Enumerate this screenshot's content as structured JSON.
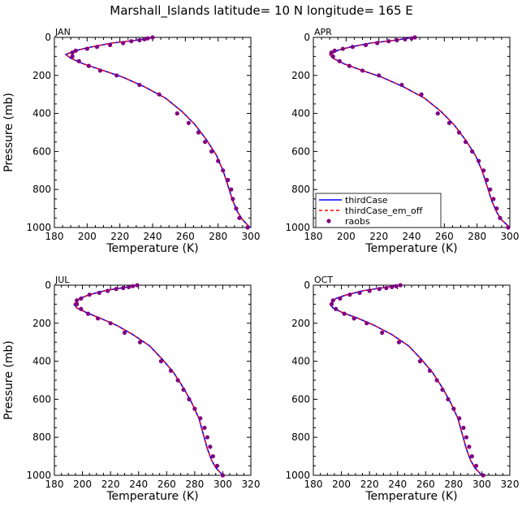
{
  "figure": {
    "title": "Marshall_Islands   latitude= 10 N longitude= 165 E"
  },
  "legend": {
    "entries": [
      {
        "label": "thirdCase",
        "style": "solid-line",
        "color": "#0000ff"
      },
      {
        "label": "thirdCase_em_off",
        "style": "dashed-line",
        "color": "#ff0000"
      },
      {
        "label": "raobs",
        "style": "dot",
        "color": "#800080"
      }
    ]
  },
  "colors": {
    "thirdCase": "#0000ff",
    "thirdCase_em_off": "#ff0000",
    "raobs": "#800080"
  },
  "chart_data": [
    {
      "type": "line",
      "panel": "JAN",
      "xlabel": "Temperature (K)",
      "ylabel": "Pressure (mb)",
      "xlim": [
        180,
        300
      ],
      "ylim": [
        1000,
        0
      ],
      "xticks": [
        180,
        200,
        220,
        240,
        260,
        280,
        300
      ],
      "yticks": [
        0,
        200,
        400,
        600,
        800,
        1000
      ],
      "series": [
        {
          "name": "thirdCase",
          "x": [
            241,
            230,
            215,
            200,
            192,
            187,
            190,
            198,
            210,
            222,
            235,
            248,
            258,
            266,
            273,
            279,
            283,
            286,
            289,
            292,
            295,
            299.5
          ],
          "y": [
            0,
            15,
            30,
            55,
            72,
            90,
            110,
            140,
            175,
            210,
            260,
            320,
            390,
            460,
            540,
            620,
            700,
            780,
            860,
            920,
            960,
            1000
          ]
        },
        {
          "name": "thirdCase_em_off",
          "x": [
            241,
            230,
            215,
            200,
            192,
            187,
            190,
            198,
            210,
            222,
            235,
            248,
            258,
            266,
            273,
            279,
            283,
            286,
            289,
            292,
            295,
            299.5
          ],
          "y": [
            0,
            15,
            30,
            55,
            72,
            90,
            110,
            140,
            175,
            210,
            260,
            320,
            390,
            460,
            540,
            620,
            700,
            780,
            860,
            920,
            960,
            1000
          ]
        },
        {
          "name": "raobs",
          "x": [
            240,
            237,
            235,
            232,
            227,
            222,
            214,
            206,
            200,
            193,
            191,
            191,
            195,
            201,
            208,
            218,
            232,
            244,
            255,
            262,
            268,
            272,
            276,
            280,
            283,
            286,
            288,
            289,
            291,
            293,
            298
          ],
          "y": [
            0,
            5,
            10,
            15,
            20,
            30,
            40,
            50,
            60,
            70,
            80,
            100,
            125,
            150,
            175,
            200,
            250,
            300,
            400,
            450,
            500,
            550,
            600,
            650,
            700,
            750,
            800,
            850,
            900,
            950,
            1000
          ]
        }
      ]
    },
    {
      "type": "line",
      "panel": "APR",
      "xlabel": "Temperature (K)",
      "ylabel": "",
      "xlim": [
        180,
        300
      ],
      "ylim": [
        1000,
        0
      ],
      "xticks": [
        180,
        200,
        220,
        240,
        260,
        280,
        300
      ],
      "yticks": [
        0,
        200,
        400,
        600,
        800,
        1000
      ],
      "series": [
        {
          "name": "thirdCase",
          "x": [
            241,
            230,
            215,
            202,
            195,
            190,
            192,
            199,
            210,
            222,
            235,
            248,
            258,
            266,
            273,
            279,
            283,
            286,
            289,
            292,
            295,
            300
          ],
          "y": [
            0,
            15,
            30,
            52,
            68,
            90,
            110,
            140,
            175,
            210,
            260,
            320,
            390,
            460,
            540,
            620,
            700,
            780,
            860,
            920,
            960,
            1000
          ]
        },
        {
          "name": "thirdCase_em_off",
          "x": [
            241,
            230,
            215,
            202,
            195,
            190,
            192,
            199,
            210,
            222,
            235,
            248,
            258,
            266,
            273,
            279,
            283,
            286,
            289,
            292,
            295,
            300
          ],
          "y": [
            0,
            15,
            30,
            52,
            68,
            90,
            110,
            140,
            175,
            210,
            260,
            320,
            390,
            460,
            540,
            620,
            700,
            780,
            860,
            920,
            960,
            1000
          ]
        },
        {
          "name": "raobs",
          "x": [
            242,
            240,
            236,
            231,
            226,
            219,
            212,
            204,
            198,
            193,
            191,
            192,
            196,
            202,
            210,
            220,
            234,
            246,
            256,
            263,
            269,
            273,
            277,
            281,
            284,
            286,
            288,
            290,
            292,
            294,
            299
          ],
          "y": [
            0,
            5,
            10,
            15,
            20,
            30,
            40,
            50,
            60,
            70,
            80,
            100,
            125,
            150,
            175,
            200,
            250,
            300,
            400,
            450,
            500,
            550,
            600,
            650,
            700,
            750,
            800,
            850,
            900,
            950,
            1000
          ]
        }
      ]
    },
    {
      "type": "line",
      "panel": "JUL",
      "xlabel": "Temperature (K)",
      "ylabel": "Pressure (mb)",
      "xlim": [
        180,
        320
      ],
      "ylim": [
        1000,
        0
      ],
      "xticks": [
        180,
        200,
        220,
        240,
        260,
        280,
        300,
        320
      ],
      "yticks": [
        0,
        200,
        400,
        600,
        800,
        1000
      ],
      "series": [
        {
          "name": "thirdCase",
          "x": [
            240,
            230,
            217,
            205,
            198,
            194,
            196,
            203,
            213,
            224,
            236,
            248,
            257,
            265,
            272,
            278,
            283,
            286,
            289,
            292,
            295,
            300
          ],
          "y": [
            0,
            12,
            27,
            50,
            70,
            100,
            120,
            145,
            175,
            210,
            260,
            320,
            390,
            460,
            540,
            620,
            700,
            780,
            860,
            920,
            960,
            1000
          ]
        },
        {
          "name": "thirdCase_em_off",
          "x": [
            240,
            230,
            217,
            205,
            198,
            194,
            196,
            203,
            213,
            224,
            236,
            248,
            257,
            265,
            272,
            278,
            283,
            286,
            289,
            292,
            295,
            300
          ],
          "y": [
            0,
            12,
            27,
            50,
            70,
            100,
            120,
            145,
            175,
            210,
            260,
            320,
            390,
            460,
            540,
            620,
            700,
            780,
            860,
            920,
            960,
            1000
          ]
        },
        {
          "name": "raobs",
          "x": [
            239,
            236,
            233,
            229,
            224,
            218,
            212,
            205,
            199,
            196,
            196,
            199,
            204,
            211,
            220,
            230,
            241,
            256,
            263,
            268,
            272,
            276,
            280,
            284,
            287,
            289,
            291,
            293,
            296,
            300
          ],
          "y": [
            0,
            5,
            10,
            15,
            20,
            30,
            40,
            50,
            70,
            80,
            100,
            125,
            150,
            175,
            200,
            250,
            300,
            400,
            450,
            500,
            550,
            600,
            650,
            700,
            750,
            800,
            850,
            900,
            950,
            1000
          ]
        }
      ]
    },
    {
      "type": "line",
      "panel": "OCT",
      "xlabel": "Temperature (K)",
      "ylabel": "",
      "xlim": [
        180,
        320
      ],
      "ylim": [
        1000,
        0
      ],
      "xticks": [
        180,
        200,
        220,
        240,
        260,
        280,
        300,
        320
      ],
      "yticks": [
        0,
        200,
        400,
        600,
        800,
        1000
      ],
      "series": [
        {
          "name": "thirdCase",
          "x": [
            241,
            230,
            216,
            203,
            196,
            192,
            194,
            201,
            212,
            223,
            236,
            248,
            257,
            265,
            272,
            278,
            283,
            286,
            289,
            292,
            295,
            300
          ],
          "y": [
            0,
            13,
            28,
            52,
            70,
            100,
            120,
            145,
            175,
            210,
            260,
            320,
            390,
            460,
            540,
            620,
            700,
            780,
            860,
            920,
            960,
            1000
          ]
        },
        {
          "name": "thirdCase_em_off",
          "x": [
            241,
            230,
            216,
            203,
            196,
            192,
            194,
            201,
            212,
            223,
            236,
            248,
            257,
            265,
            272,
            278,
            283,
            286,
            289,
            292,
            295,
            300
          ],
          "y": [
            0,
            13,
            28,
            52,
            70,
            100,
            120,
            145,
            175,
            210,
            260,
            320,
            390,
            460,
            540,
            620,
            700,
            780,
            860,
            920,
            960,
            1000
          ]
        },
        {
          "name": "raobs",
          "x": [
            242,
            239,
            236,
            232,
            227,
            220,
            213,
            206,
            199,
            194,
            193,
            196,
            202,
            209,
            218,
            229,
            241,
            256,
            263,
            268,
            272,
            276,
            280,
            284,
            287,
            289,
            291,
            293,
            296,
            301
          ],
          "y": [
            0,
            5,
            10,
            15,
            20,
            30,
            40,
            50,
            70,
            80,
            100,
            125,
            150,
            175,
            200,
            250,
            300,
            400,
            450,
            500,
            550,
            600,
            650,
            700,
            750,
            800,
            850,
            900,
            950,
            1000
          ]
        }
      ]
    }
  ]
}
